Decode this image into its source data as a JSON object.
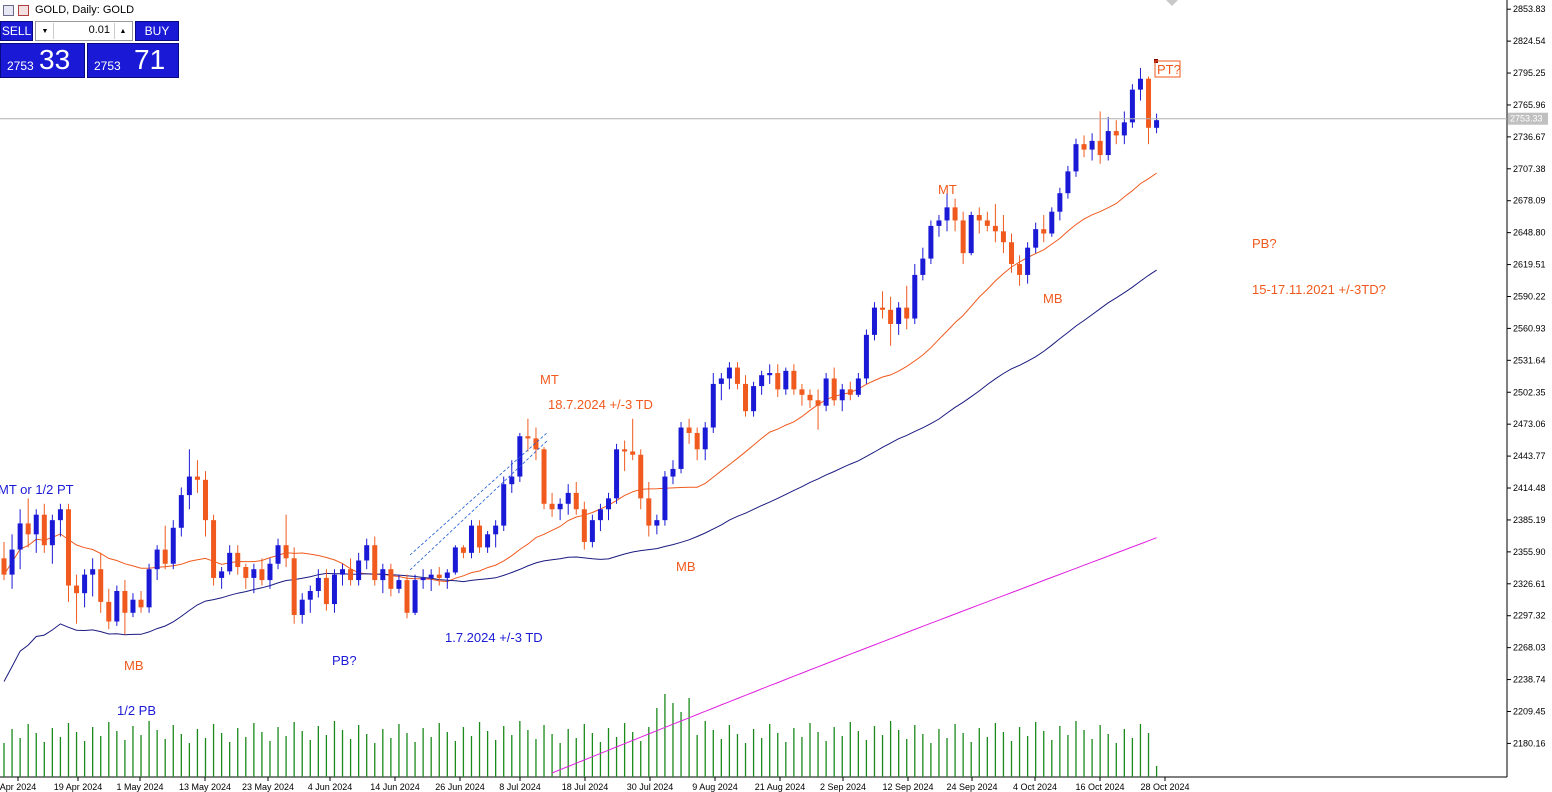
{
  "window": {
    "title": "GOLD, Daily:  GOLD"
  },
  "trade_panel": {
    "sell_label": "SELL",
    "buy_label": "BUY",
    "lot_value": "0.01",
    "sell_price_small": "2753",
    "sell_price_big": "33",
    "buy_price_small": "2753",
    "buy_price_big": "71"
  },
  "colors": {
    "bull": "#1a1ad6",
    "bear": "#f05a1e",
    "ma_fast": "#f05a1e",
    "ma_mid": "#1a1a80",
    "ma_slow": "#e020e0",
    "volume": "#1a8a1a",
    "annotation_red": "#f05a1e",
    "annotation_blue": "#1a1ad6"
  },
  "chart_data": {
    "type": "candlestick",
    "symbol": "GOLD",
    "timeframe": "Daily",
    "current_price": "2753.33",
    "ylim": [
      2153,
      2854
    ],
    "y_ticks": [
      "2853.83",
      "2824.54",
      "2795.25",
      "2765.96",
      "2736.67",
      "2707.38",
      "2678.09",
      "2648.80",
      "2619.51",
      "2590.22",
      "2560.93",
      "2531.64",
      "2502.35",
      "2473.06",
      "2443.77",
      "2414.48",
      "2385.19",
      "2355.90",
      "2326.61",
      "2297.32",
      "2268.03",
      "2238.74",
      "2209.45",
      "2180.16"
    ],
    "x_ticks": [
      "Apr 2024",
      "19 Apr 2024",
      "1 May 2024",
      "13 May 2024",
      "23 May 2024",
      "4 Jun 2024",
      "14 Jun 2024",
      "26 Jun 2024",
      "8 Jul 2024",
      "18 Jul 2024",
      "30 Jul 2024",
      "9 Aug 2024",
      "21 Aug 2024",
      "2 Sep 2024",
      "12 Sep 2024",
      "24 Sep 2024",
      "4 Oct 2024",
      "16 Oct 2024",
      "28 Oct 2024"
    ],
    "ohlc": [
      [
        2350,
        2365,
        2330,
        2335
      ],
      [
        2335,
        2372,
        2322,
        2358
      ],
      [
        2358,
        2395,
        2340,
        2382
      ],
      [
        2382,
        2405,
        2360,
        2372
      ],
      [
        2372,
        2395,
        2355,
        2390
      ],
      [
        2390,
        2400,
        2355,
        2362
      ],
      [
        2362,
        2390,
        2345,
        2385
      ],
      [
        2385,
        2400,
        2370,
        2395
      ],
      [
        2395,
        2400,
        2310,
        2325
      ],
      [
        2325,
        2335,
        2290,
        2318
      ],
      [
        2318,
        2340,
        2305,
        2335
      ],
      [
        2335,
        2350,
        2315,
        2340
      ],
      [
        2340,
        2355,
        2300,
        2310
      ],
      [
        2310,
        2322,
        2285,
        2292
      ],
      [
        2292,
        2325,
        2288,
        2320
      ],
      [
        2320,
        2330,
        2280,
        2300
      ],
      [
        2300,
        2318,
        2296,
        2312
      ],
      [
        2312,
        2320,
        2300,
        2305
      ],
      [
        2305,
        2345,
        2300,
        2340
      ],
      [
        2340,
        2362,
        2330,
        2358
      ],
      [
        2358,
        2380,
        2340,
        2345
      ],
      [
        2345,
        2385,
        2340,
        2378
      ],
      [
        2378,
        2415,
        2370,
        2408
      ],
      [
        2408,
        2450,
        2395,
        2425
      ],
      [
        2425,
        2440,
        2410,
        2422
      ],
      [
        2422,
        2430,
        2370,
        2385
      ],
      [
        2385,
        2390,
        2325,
        2332
      ],
      [
        2332,
        2342,
        2322,
        2338
      ],
      [
        2338,
        2362,
        2335,
        2355
      ],
      [
        2355,
        2362,
        2335,
        2342
      ],
      [
        2342,
        2345,
        2322,
        2332
      ],
      [
        2332,
        2345,
        2318,
        2340
      ],
      [
        2340,
        2350,
        2325,
        2330
      ],
      [
        2330,
        2350,
        2322,
        2345
      ],
      [
        2345,
        2368,
        2340,
        2362
      ],
      [
        2362,
        2390,
        2342,
        2350
      ],
      [
        2350,
        2360,
        2290,
        2298
      ],
      [
        2298,
        2318,
        2290,
        2312
      ],
      [
        2312,
        2325,
        2300,
        2320
      ],
      [
        2320,
        2340,
        2314,
        2332
      ],
      [
        2332,
        2340,
        2302,
        2308
      ],
      [
        2308,
        2340,
        2300,
        2335
      ],
      [
        2335,
        2345,
        2325,
        2340
      ],
      [
        2340,
        2350,
        2325,
        2330
      ],
      [
        2330,
        2355,
        2325,
        2348
      ],
      [
        2348,
        2368,
        2340,
        2362
      ],
      [
        2362,
        2370,
        2325,
        2330
      ],
      [
        2330,
        2345,
        2318,
        2340
      ],
      [
        2340,
        2345,
        2315,
        2322
      ],
      [
        2322,
        2335,
        2318,
        2330
      ],
      [
        2330,
        2335,
        2295,
        2300
      ],
      [
        2300,
        2335,
        2298,
        2330
      ],
      [
        2330,
        2340,
        2322,
        2332
      ],
      [
        2332,
        2340,
        2320,
        2335
      ],
      [
        2335,
        2342,
        2325,
        2332
      ],
      [
        2332,
        2340,
        2322,
        2337
      ],
      [
        2337,
        2362,
        2335,
        2360
      ],
      [
        2360,
        2362,
        2350,
        2355
      ],
      [
        2355,
        2385,
        2350,
        2380
      ],
      [
        2380,
        2385,
        2355,
        2360
      ],
      [
        2360,
        2375,
        2355,
        2372
      ],
      [
        2372,
        2385,
        2360,
        2380
      ],
      [
        2380,
        2425,
        2375,
        2418
      ],
      [
        2418,
        2440,
        2410,
        2425
      ],
      [
        2425,
        2465,
        2420,
        2462
      ],
      [
        2462,
        2478,
        2448,
        2460
      ],
      [
        2460,
        2470,
        2440,
        2450
      ],
      [
        2450,
        2452,
        2395,
        2400
      ],
      [
        2400,
        2410,
        2388,
        2395
      ],
      [
        2395,
        2405,
        2385,
        2400
      ],
      [
        2400,
        2418,
        2390,
        2410
      ],
      [
        2410,
        2420,
        2390,
        2395
      ],
      [
        2395,
        2402,
        2358,
        2365
      ],
      [
        2365,
        2390,
        2360,
        2385
      ],
      [
        2385,
        2400,
        2375,
        2395
      ],
      [
        2395,
        2410,
        2385,
        2405
      ],
      [
        2405,
        2455,
        2400,
        2450
      ],
      [
        2450,
        2458,
        2430,
        2448
      ],
      [
        2448,
        2478,
        2440,
        2445
      ],
      [
        2445,
        2450,
        2395,
        2405
      ],
      [
        2405,
        2420,
        2370,
        2380
      ],
      [
        2380,
        2390,
        2372,
        2385
      ],
      [
        2385,
        2430,
        2380,
        2425
      ],
      [
        2425,
        2440,
        2418,
        2432
      ],
      [
        2432,
        2475,
        2428,
        2470
      ],
      [
        2470,
        2478,
        2455,
        2465
      ],
      [
        2465,
        2470,
        2440,
        2450
      ],
      [
        2450,
        2475,
        2440,
        2470
      ],
      [
        2470,
        2520,
        2465,
        2510
      ],
      [
        2510,
        2520,
        2495,
        2515
      ],
      [
        2515,
        2530,
        2505,
        2525
      ],
      [
        2525,
        2530,
        2505,
        2510
      ],
      [
        2510,
        2518,
        2480,
        2485
      ],
      [
        2485,
        2512,
        2480,
        2508
      ],
      [
        2508,
        2522,
        2500,
        2518
      ],
      [
        2518,
        2528,
        2510,
        2520
      ],
      [
        2520,
        2528,
        2498,
        2505
      ],
      [
        2505,
        2525,
        2500,
        2522
      ],
      [
        2522,
        2528,
        2500,
        2505
      ],
      [
        2505,
        2510,
        2490,
        2500
      ],
      [
        2500,
        2505,
        2488,
        2495
      ],
      [
        2495,
        2505,
        2468,
        2490
      ],
      [
        2490,
        2520,
        2485,
        2515
      ],
      [
        2515,
        2525,
        2490,
        2495
      ],
      [
        2495,
        2510,
        2485,
        2505
      ],
      [
        2505,
        2512,
        2495,
        2500
      ],
      [
        2500,
        2520,
        2498,
        2515
      ],
      [
        2515,
        2560,
        2510,
        2555
      ],
      [
        2555,
        2585,
        2550,
        2580
      ],
      [
        2580,
        2595,
        2570,
        2578
      ],
      [
        2578,
        2590,
        2545,
        2565
      ],
      [
        2565,
        2585,
        2555,
        2580
      ],
      [
        2580,
        2600,
        2560,
        2570
      ],
      [
        2570,
        2620,
        2565,
        2610
      ],
      [
        2610,
        2635,
        2605,
        2625
      ],
      [
        2625,
        2660,
        2620,
        2655
      ],
      [
        2655,
        2665,
        2645,
        2660
      ],
      [
        2660,
        2685,
        2650,
        2672
      ],
      [
        2672,
        2680,
        2650,
        2660
      ],
      [
        2660,
        2668,
        2620,
        2630
      ],
      [
        2630,
        2668,
        2628,
        2665
      ],
      [
        2665,
        2672,
        2648,
        2660
      ],
      [
        2660,
        2668,
        2650,
        2655
      ],
      [
        2655,
        2675,
        2640,
        2650
      ],
      [
        2650,
        2665,
        2630,
        2640
      ],
      [
        2640,
        2648,
        2612,
        2620
      ],
      [
        2620,
        2628,
        2600,
        2610
      ],
      [
        2610,
        2640,
        2602,
        2635
      ],
      [
        2635,
        2658,
        2630,
        2652
      ],
      [
        2652,
        2665,
        2640,
        2648
      ],
      [
        2648,
        2672,
        2645,
        2668
      ],
      [
        2668,
        2690,
        2660,
        2685
      ],
      [
        2685,
        2710,
        2680,
        2705
      ],
      [
        2705,
        2735,
        2700,
        2730
      ],
      [
        2730,
        2738,
        2718,
        2725
      ],
      [
        2725,
        2740,
        2715,
        2733
      ],
      [
        2733,
        2760,
        2712,
        2720
      ],
      [
        2720,
        2755,
        2715,
        2742
      ],
      [
        2742,
        2752,
        2730,
        2738
      ],
      [
        2738,
        2760,
        2730,
        2750
      ],
      [
        2750,
        2785,
        2745,
        2780
      ],
      [
        2780,
        2800,
        2770,
        2790
      ],
      [
        2790,
        2792,
        2730,
        2745
      ],
      [
        2745,
        2758,
        2740,
        2752
      ]
    ],
    "ma_fast_end": 2700,
    "ma_mid_end": 2620,
    "ma_slow_end": 2370,
    "annotations": [
      {
        "text": "MT or 1/2 PT",
        "color": "blue"
      },
      {
        "text": "MB",
        "color": "red"
      },
      {
        "text": "1/2 PB",
        "color": "blue"
      },
      {
        "text": "PB?",
        "color": "blue"
      },
      {
        "text": "1.7.2024 +/-3 TD",
        "color": "blue"
      },
      {
        "text": "MT",
        "color": "red"
      },
      {
        "text": "18.7.2024 +/-3 TD",
        "color": "red"
      },
      {
        "text": "MB",
        "color": "red"
      },
      {
        "text": "MT",
        "color": "red"
      },
      {
        "text": "MB",
        "color": "red"
      },
      {
        "text": "PT?",
        "color": "red"
      },
      {
        "text": "PB?",
        "color": "red"
      },
      {
        "text": "15-17.11.2021 +/-3TD?",
        "color": "red"
      }
    ]
  }
}
